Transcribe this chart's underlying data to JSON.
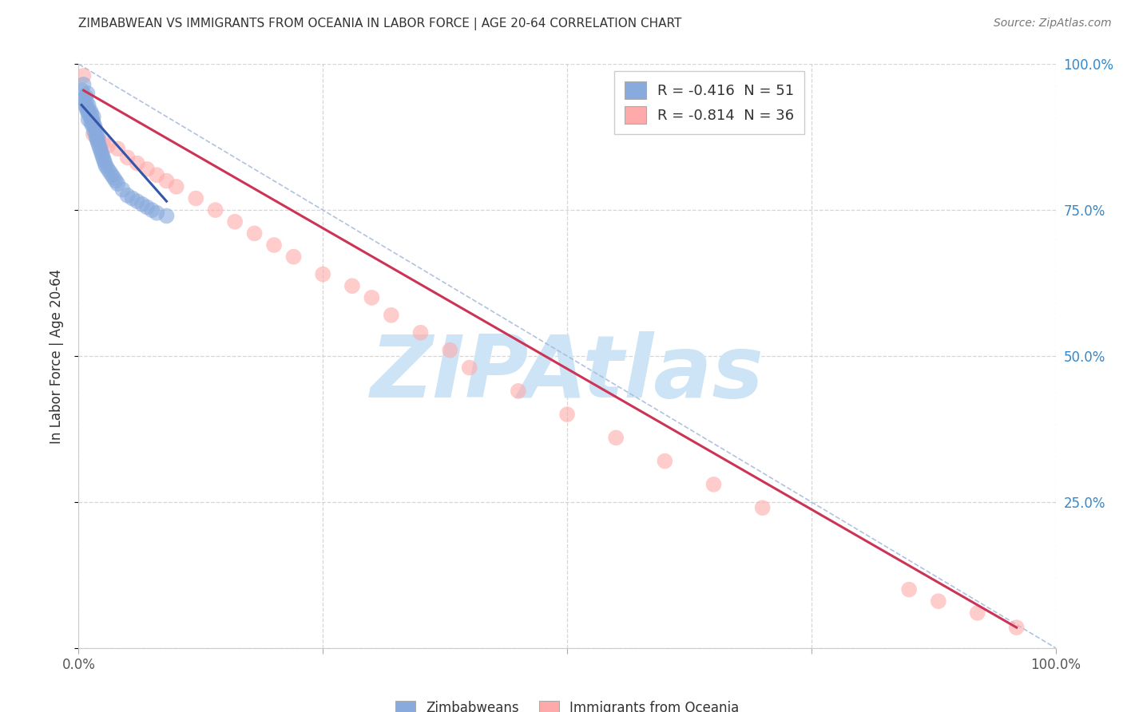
{
  "title": "ZIMBABWEAN VS IMMIGRANTS FROM OCEANIA IN LABOR FORCE | AGE 20-64 CORRELATION CHART",
  "source": "Source: ZipAtlas.com",
  "ylabel": "In Labor Force | Age 20-64",
  "legend_label1": "Zimbabweans",
  "legend_label2": "Immigrants from Oceania",
  "R1": -0.416,
  "N1": 51,
  "R2": -0.814,
  "N2": 36,
  "color1": "#88aadd",
  "color2": "#ffaaaa",
  "line1_color": "#3355aa",
  "line2_color": "#cc3355",
  "diag_color": "#aabbdd",
  "watermark": "ZIPAtlas",
  "watermark_color": "#cce4f5",
  "xlim": [
    0,
    1
  ],
  "ylim": [
    0,
    1
  ],
  "xticks": [
    0,
    0.25,
    0.5,
    0.75,
    1.0
  ],
  "yticks": [
    0,
    0.25,
    0.5,
    0.75,
    1.0
  ],
  "xticklabels": [
    "0.0%",
    "",
    "",
    "",
    "100.0%"
  ],
  "right_yticklabels": [
    "",
    "25.0%",
    "50.0%",
    "75.0%",
    "100.0%"
  ],
  "blue_x": [
    0.003,
    0.005,
    0.005,
    0.007,
    0.007,
    0.008,
    0.008,
    0.009,
    0.009,
    0.01,
    0.01,
    0.01,
    0.012,
    0.012,
    0.013,
    0.013,
    0.014,
    0.014,
    0.015,
    0.015,
    0.016,
    0.016,
    0.017,
    0.018,
    0.018,
    0.019,
    0.02,
    0.02,
    0.021,
    0.022,
    0.023,
    0.024,
    0.025,
    0.026,
    0.027,
    0.028,
    0.03,
    0.032,
    0.034,
    0.036,
    0.038,
    0.04,
    0.045,
    0.05,
    0.055,
    0.06,
    0.065,
    0.07,
    0.075,
    0.08,
    0.09
  ],
  "blue_y": [
    0.955,
    0.965,
    0.94,
    0.945,
    0.93,
    0.935,
    0.925,
    0.95,
    0.92,
    0.93,
    0.915,
    0.905,
    0.92,
    0.91,
    0.915,
    0.9,
    0.905,
    0.895,
    0.91,
    0.9,
    0.895,
    0.885,
    0.89,
    0.88,
    0.875,
    0.87,
    0.875,
    0.865,
    0.86,
    0.855,
    0.85,
    0.845,
    0.84,
    0.835,
    0.83,
    0.825,
    0.82,
    0.815,
    0.81,
    0.805,
    0.8,
    0.795,
    0.785,
    0.775,
    0.77,
    0.765,
    0.76,
    0.755,
    0.75,
    0.745,
    0.74
  ],
  "pink_x": [
    0.005,
    0.01,
    0.015,
    0.02,
    0.025,
    0.03,
    0.04,
    0.05,
    0.06,
    0.07,
    0.08,
    0.09,
    0.1,
    0.12,
    0.14,
    0.16,
    0.18,
    0.2,
    0.22,
    0.25,
    0.28,
    0.3,
    0.32,
    0.35,
    0.38,
    0.4,
    0.45,
    0.5,
    0.55,
    0.6,
    0.65,
    0.7,
    0.85,
    0.88,
    0.92,
    0.96
  ],
  "pink_y": [
    0.98,
    0.92,
    0.88,
    0.87,
    0.865,
    0.86,
    0.855,
    0.84,
    0.83,
    0.82,
    0.81,
    0.8,
    0.79,
    0.77,
    0.75,
    0.73,
    0.71,
    0.69,
    0.67,
    0.64,
    0.62,
    0.6,
    0.57,
    0.54,
    0.51,
    0.48,
    0.44,
    0.4,
    0.36,
    0.32,
    0.28,
    0.24,
    0.1,
    0.08,
    0.06,
    0.035
  ],
  "blue_line_x": [
    0.003,
    0.09
  ],
  "blue_line_y": [
    0.93,
    0.765
  ],
  "pink_line_x": [
    0.005,
    0.96
  ],
  "pink_line_y": [
    0.955,
    0.035
  ]
}
